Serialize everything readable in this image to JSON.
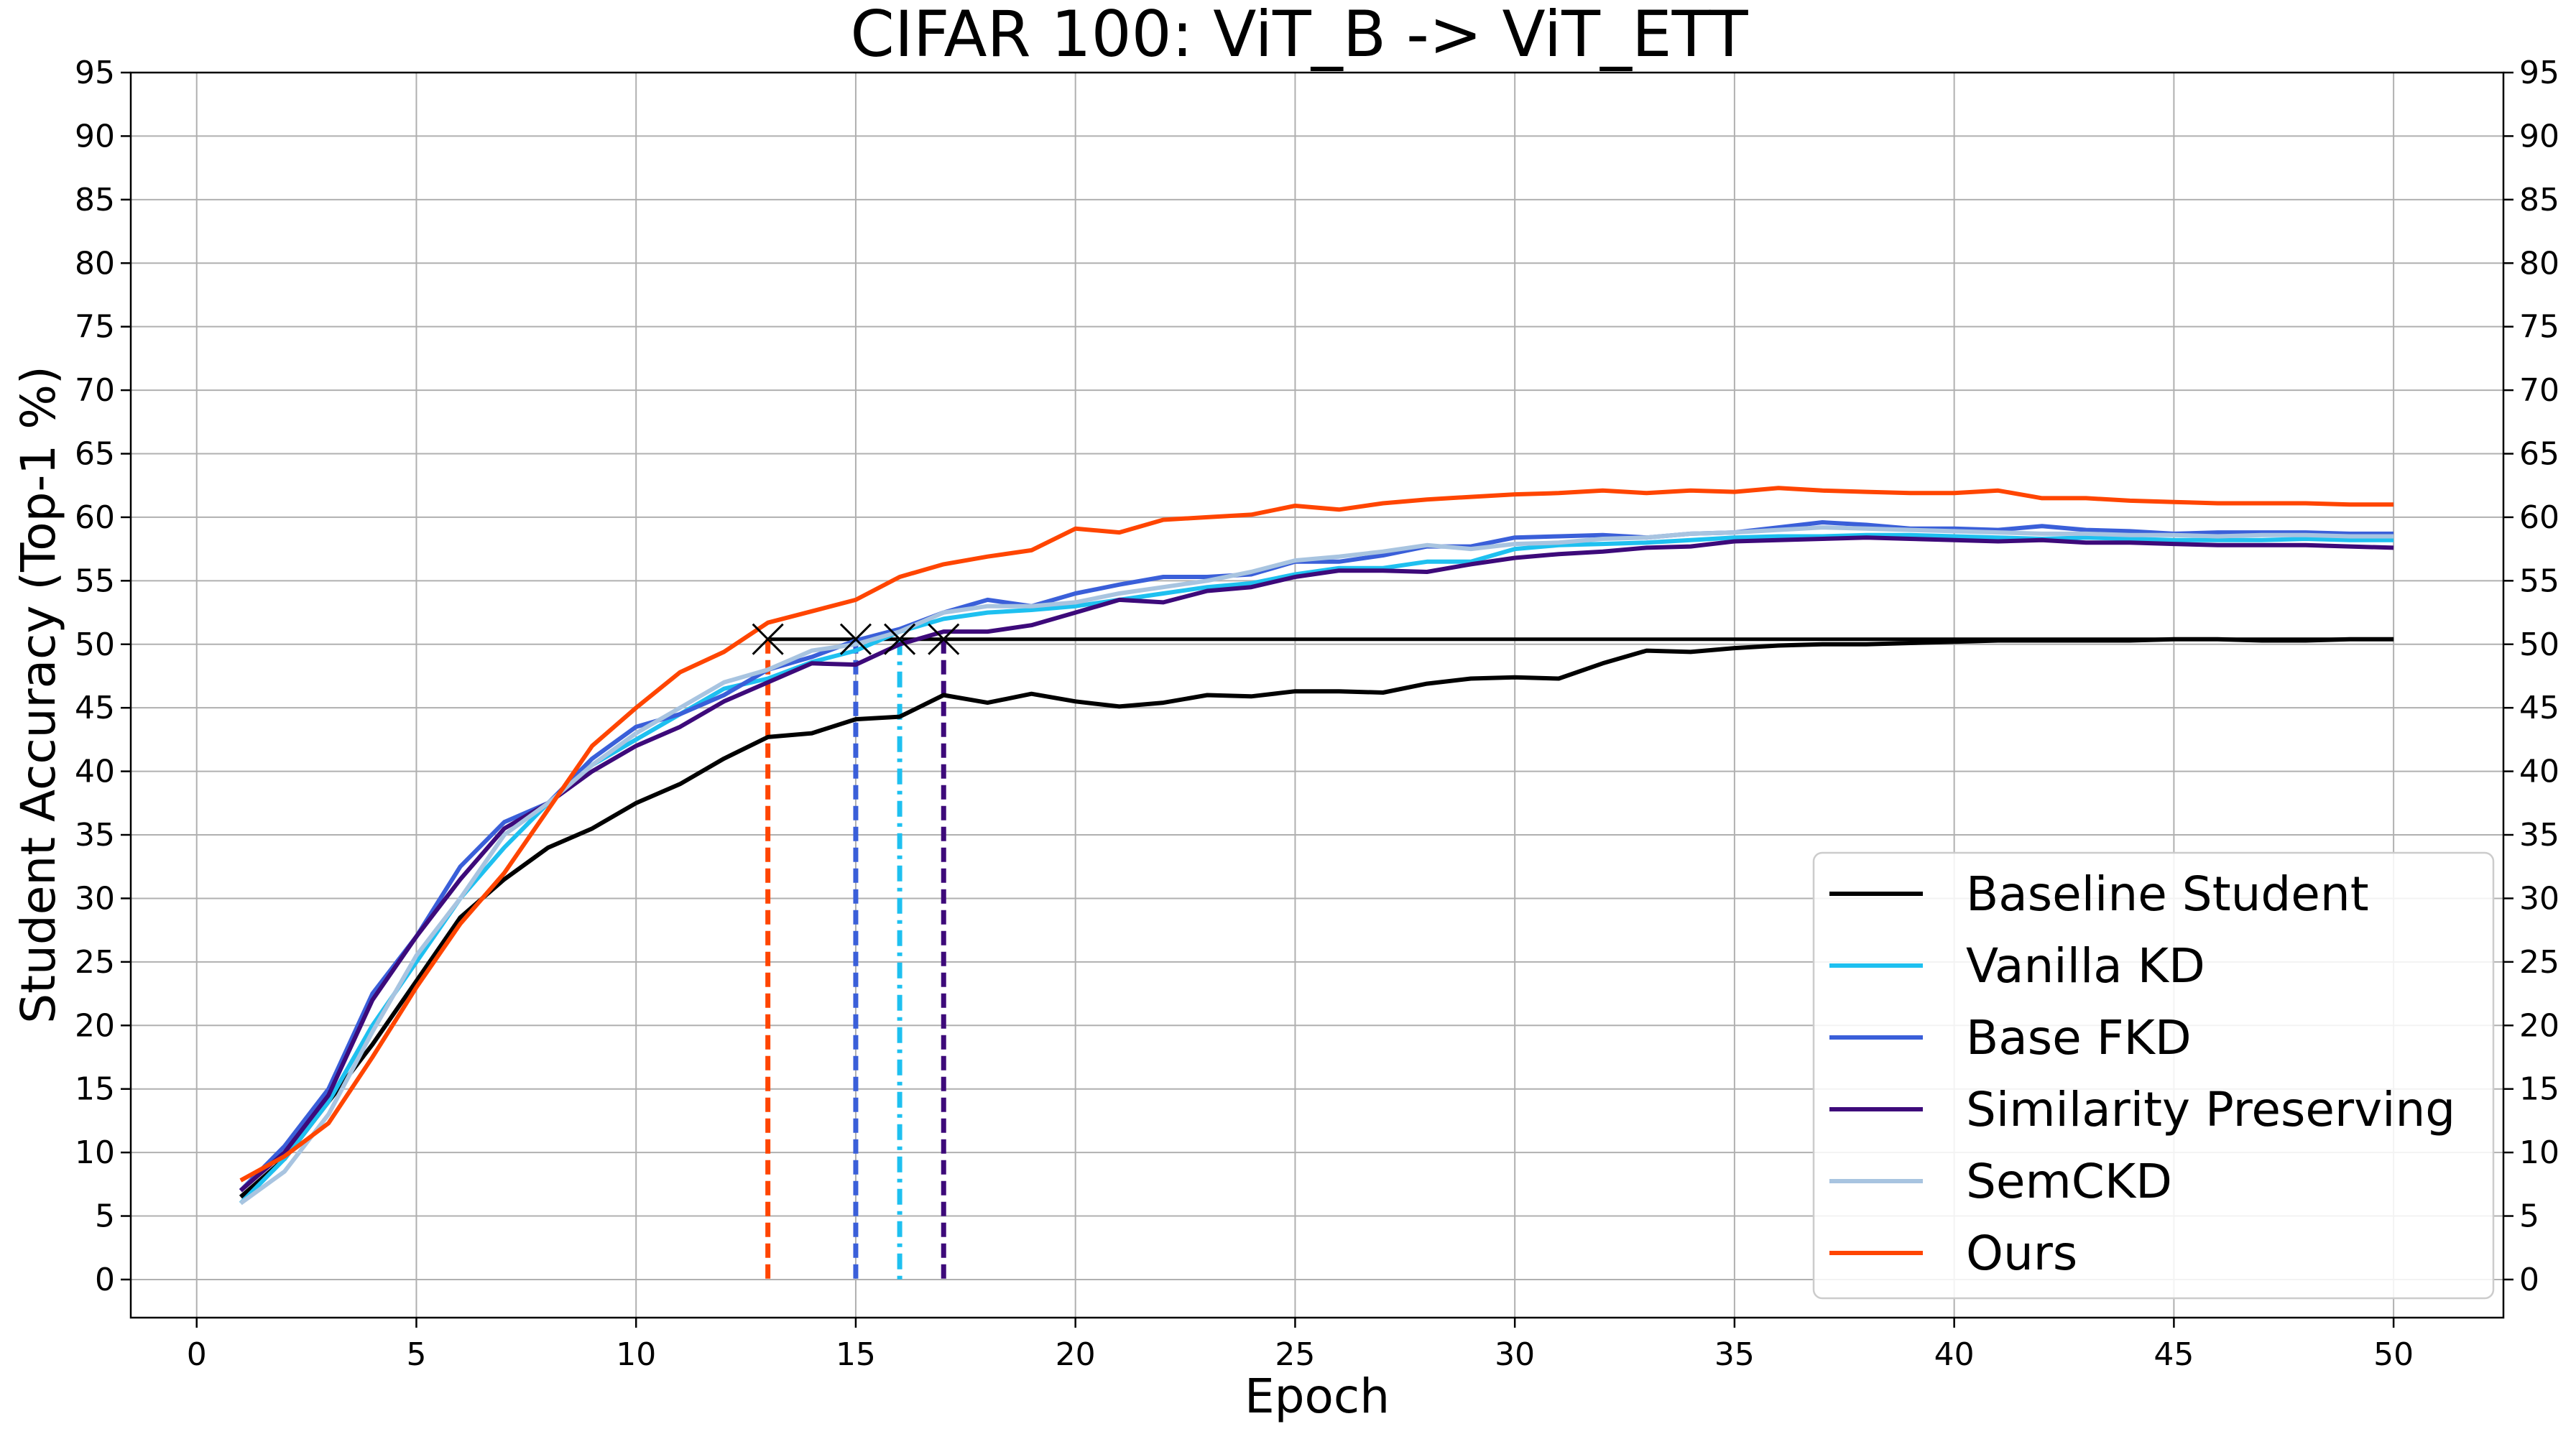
{
  "chart_data": {
    "type": "line",
    "title": "CIFAR 100: ViT_B -> ViT_ETT",
    "xlabel": "Epoch",
    "ylabel": "Student Accuracy (Top-1 %)",
    "xlim": [
      -1.5,
      52.5
    ],
    "ylim": [
      -3,
      95
    ],
    "xticks": [
      0,
      5,
      10,
      15,
      20,
      25,
      30,
      35,
      40,
      45,
      50
    ],
    "yticks": [
      0,
      5,
      10,
      15,
      20,
      25,
      30,
      35,
      40,
      45,
      50,
      55,
      60,
      65,
      70,
      75,
      80,
      85,
      90,
      95
    ],
    "grid": true,
    "legend_position": "lower-right",
    "x": [
      1,
      2,
      3,
      4,
      5,
      6,
      7,
      8,
      9,
      10,
      11,
      12,
      13,
      14,
      15,
      16,
      17,
      18,
      19,
      20,
      21,
      22,
      23,
      24,
      25,
      26,
      27,
      28,
      29,
      30,
      31,
      32,
      33,
      34,
      35,
      36,
      37,
      38,
      39,
      40,
      41,
      42,
      43,
      44,
      45,
      46,
      47,
      48,
      49,
      50
    ],
    "series": [
      {
        "name": "Baseline Student",
        "color": "#000000",
        "values": [
          6.5,
          9.5,
          14.0,
          18.5,
          23.5,
          28.5,
          31.5,
          34.0,
          35.5,
          37.5,
          39.0,
          41.0,
          42.7,
          43.0,
          44.1,
          44.3,
          46.0,
          45.4,
          46.1,
          45.5,
          45.1,
          45.4,
          46.0,
          45.9,
          46.3,
          46.3,
          46.2,
          46.9,
          47.3,
          47.4,
          47.3,
          48.5,
          49.5,
          49.4,
          49.7,
          49.9,
          50.0,
          50.0,
          50.1,
          50.2,
          50.3,
          50.3,
          50.3,
          50.3,
          50.4,
          50.4,
          50.3,
          50.3,
          50.4,
          50.4
        ]
      },
      {
        "name": "Vanilla KD",
        "color": "#1ec0f0",
        "values": [
          6.0,
          9.5,
          14.0,
          20.0,
          25.0,
          30.0,
          34.0,
          37.5,
          40.5,
          42.5,
          44.5,
          46.5,
          47.3,
          48.6,
          49.5,
          51.0,
          52.0,
          52.5,
          52.7,
          53.0,
          53.5,
          54.0,
          54.5,
          54.8,
          55.5,
          56.0,
          56.0,
          56.5,
          56.5,
          57.5,
          57.8,
          57.9,
          58.0,
          58.2,
          58.4,
          58.5,
          58.5,
          58.6,
          58.6,
          58.5,
          58.4,
          58.3,
          58.4,
          58.3,
          58.2,
          58.2,
          58.2,
          58.3,
          58.2,
          58.2
        ]
      },
      {
        "name": "Base FKD",
        "color": "#3a5fd9",
        "values": [
          7.0,
          10.5,
          15.0,
          22.5,
          27.0,
          32.5,
          36.0,
          37.5,
          41.0,
          43.5,
          44.5,
          46.0,
          48.0,
          49.0,
          50.3,
          51.2,
          52.5,
          53.5,
          53.0,
          54.0,
          54.7,
          55.3,
          55.3,
          55.5,
          56.5,
          56.5,
          57.0,
          57.7,
          57.7,
          58.4,
          58.5,
          58.6,
          58.4,
          58.7,
          58.8,
          59.2,
          59.6,
          59.4,
          59.1,
          59.1,
          59.0,
          59.3,
          59.0,
          58.9,
          58.7,
          58.8,
          58.8,
          58.8,
          58.7,
          58.7
        ]
      },
      {
        "name": "Similarity Preserving",
        "color": "#3d0a7a",
        "values": [
          7.0,
          10.0,
          14.5,
          22.0,
          27.0,
          31.5,
          35.5,
          37.5,
          40.0,
          42.0,
          43.5,
          45.5,
          47.0,
          48.5,
          48.4,
          50.0,
          51.0,
          51.0,
          51.5,
          52.5,
          53.5,
          53.3,
          54.2,
          54.5,
          55.3,
          55.8,
          55.8,
          55.7,
          56.3,
          56.8,
          57.1,
          57.3,
          57.6,
          57.7,
          58.1,
          58.2,
          58.3,
          58.4,
          58.3,
          58.2,
          58.1,
          58.2,
          58.0,
          58.0,
          57.9,
          57.8,
          57.8,
          57.8,
          57.7,
          57.6
        ]
      },
      {
        "name": "SemCKD",
        "color": "#a8c4e0",
        "values": [
          6.0,
          8.5,
          13.0,
          19.5,
          25.5,
          30.0,
          35.0,
          37.5,
          40.5,
          43.0,
          45.0,
          47.0,
          48.0,
          49.5,
          50.0,
          51.0,
          52.5,
          53.0,
          53.0,
          53.3,
          54.0,
          54.5,
          55.0,
          55.7,
          56.6,
          56.9,
          57.3,
          57.8,
          57.5,
          57.9,
          58.0,
          58.3,
          58.4,
          58.7,
          58.8,
          59.0,
          59.2,
          59.1,
          59.0,
          58.9,
          58.8,
          58.7,
          58.7,
          58.6,
          58.6,
          58.5,
          58.6,
          58.6,
          58.5,
          58.5
        ]
      },
      {
        "name": "Ours",
        "color": "#ff4500",
        "values": [
          7.8,
          9.7,
          12.3,
          17.5,
          23.0,
          28.0,
          32.0,
          37.0,
          42.0,
          45.0,
          47.8,
          49.4,
          51.7,
          52.6,
          53.5,
          55.3,
          56.3,
          56.9,
          57.4,
          59.1,
          58.8,
          59.8,
          60.0,
          60.2,
          60.9,
          60.6,
          61.1,
          61.4,
          61.6,
          61.8,
          61.9,
          62.1,
          61.9,
          62.1,
          62.0,
          62.3,
          62.1,
          62.0,
          61.9,
          61.9,
          62.1,
          61.5,
          61.5,
          61.3,
          61.2,
          61.1,
          61.1,
          61.1,
          61.0,
          61.0
        ]
      }
    ],
    "baseline_final": 50.4,
    "markers": [
      {
        "series": "Ours",
        "x": 13,
        "y": 50.4,
        "color": "#ff4500",
        "dash": "dashed"
      },
      {
        "series": "Base FKD",
        "x": 15,
        "y": 50.4,
        "color": "#3a5fd9",
        "dash": "dashed"
      },
      {
        "series": "Vanilla KD",
        "x": 16,
        "y": 50.4,
        "color": "#1ec0f0",
        "dash": "dashdot"
      },
      {
        "series": "Similarity Preserving",
        "x": 17,
        "y": 50.4,
        "color": "#3d0a7a",
        "dash": "dashed"
      }
    ]
  }
}
